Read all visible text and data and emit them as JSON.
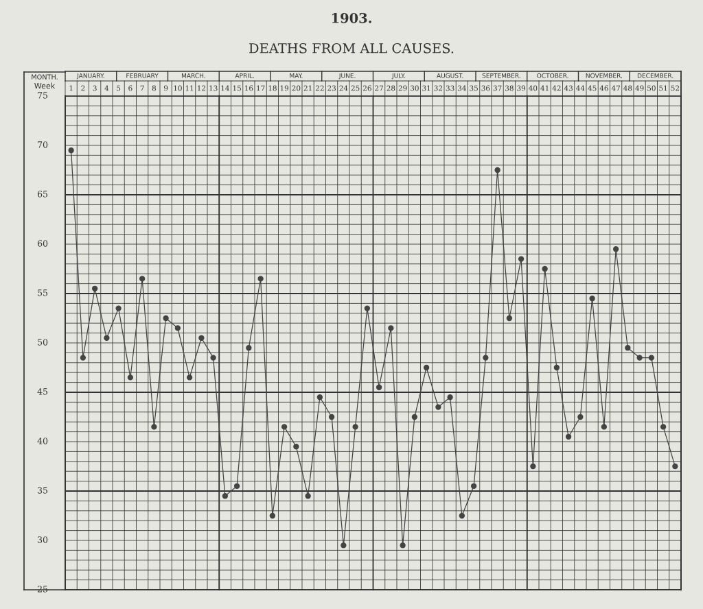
{
  "chart_data": {
    "type": "line",
    "title": "1903.",
    "subtitle": "DEATHS FROM ALL CAUSES.",
    "categories": [
      "1",
      "2",
      "3",
      "4",
      "5",
      "6",
      "7",
      "8",
      "9",
      "10",
      "11",
      "12",
      "13",
      "14",
      "15",
      "16",
      "17",
      "18",
      "19",
      "20",
      "21",
      "22",
      "23",
      "24",
      "25",
      "26",
      "27",
      "28",
      "29",
      "30",
      "31",
      "32",
      "33",
      "34",
      "35",
      "36",
      "37",
      "38",
      "39",
      "40",
      "41",
      "42",
      "43",
      "44",
      "45",
      "46",
      "47",
      "48",
      "49",
      "50",
      "51",
      "52"
    ],
    "series": [
      {
        "color": "#444444",
        "values": [
          69.5,
          48.5,
          55.5,
          50.5,
          53.5,
          46.5,
          56.5,
          41.5,
          52.5,
          51.5,
          46.5,
          50.5,
          48.5,
          34.5,
          35.5,
          49.5,
          56.5,
          32.5,
          41.5,
          39.5,
          34.5,
          44.5,
          42.5,
          29.5,
          41.5,
          53.5,
          45.5,
          51.5,
          29.5,
          42.5,
          47.5,
          43.5,
          44.5,
          32.5,
          35.5,
          48.5,
          67.5,
          52.5,
          58.5,
          37.5,
          57.5,
          47.5,
          40.5,
          42.5,
          54.5,
          41.5,
          59.5,
          49.5,
          48.5,
          48.5,
          41.5,
          37.5
        ]
      }
    ],
    "ylim": [
      25,
      75
    ],
    "yticks": [
      25,
      30,
      35,
      40,
      45,
      50,
      55,
      60,
      65,
      70,
      75
    ],
    "grid": true,
    "marker": "circle",
    "line_style": "solid",
    "annotations": [
      "MONTH.",
      "Week",
      "JANUARY.",
      "FEBRUARY",
      "MARCH.",
      "APRIL.",
      "MAY.",
      "JUNE.",
      "JULY.",
      "AUGUST.",
      "SEPTEMBER.",
      "OCTOBER.",
      "NOVEMBER.",
      "DECEMBER."
    ]
  }
}
